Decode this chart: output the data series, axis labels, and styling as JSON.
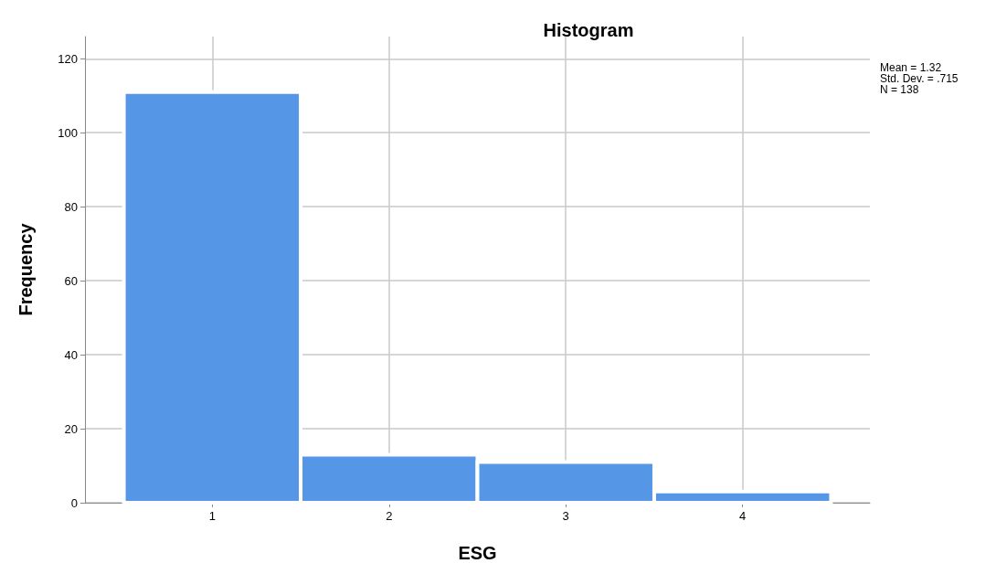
{
  "chart_data": {
    "type": "histogram",
    "title": "Histogram",
    "xlabel": "ESG",
    "ylabel": "Frequency",
    "bins": [
      0.5,
      1.5,
      2.5,
      3.5,
      4.5
    ],
    "values": [
      111,
      13,
      11,
      3
    ],
    "color": "#5596e6",
    "xlim": [
      0.28,
      4.72
    ],
    "xticks": [
      1,
      2,
      3,
      4
    ],
    "ylim": [
      0,
      126
    ],
    "yticks": [
      0,
      20,
      40,
      60,
      80,
      100,
      120
    ],
    "grid": true,
    "annotations": [
      "Mean = 1.32",
      "Std. Dev. = .715",
      "N = 138"
    ]
  }
}
